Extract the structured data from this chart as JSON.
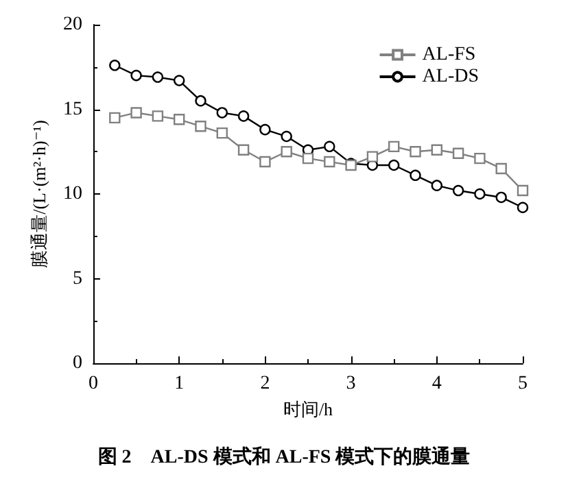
{
  "chart_data": {
    "type": "line",
    "title": "图 2　AL-DS 模式和 AL-FS 模式下的膜通量",
    "xlabel": "时间/h",
    "ylabel": "膜通量/(L·(m²·h)⁻¹)",
    "x": [
      0.25,
      0.5,
      0.75,
      1,
      1.25,
      1.5,
      1.75,
      2,
      2.25,
      2.5,
      2.75,
      3,
      3.25,
      3.5,
      3.75,
      4,
      4.25,
      4.5,
      4.75,
      5
    ],
    "series": [
      {
        "name": "AL-FS",
        "color": "#808080",
        "marker": "square",
        "values": [
          14.5,
          14.8,
          14.6,
          14.4,
          14.0,
          13.6,
          12.6,
          11.9,
          12.5,
          12.1,
          11.9,
          11.7,
          12.2,
          12.8,
          12.5,
          12.6,
          12.4,
          12.1,
          11.5,
          10.2
        ]
      },
      {
        "name": "AL-DS",
        "color": "#000000",
        "marker": "circle",
        "values": [
          17.6,
          17.0,
          16.9,
          16.7,
          15.5,
          14.8,
          14.6,
          13.8,
          13.4,
          12.6,
          12.8,
          11.8,
          11.7,
          11.7,
          11.1,
          10.5,
          10.2,
          10.0,
          9.8,
          9.2
        ]
      }
    ],
    "xlim": [
      0,
      5
    ],
    "xticks": [
      0,
      1,
      2,
      3,
      4,
      5
    ],
    "ylim": [
      0,
      20
    ],
    "yticks": [
      0,
      5,
      10,
      15,
      20
    ],
    "grid": false,
    "legend": "top right",
    "line_style": "solid"
  }
}
